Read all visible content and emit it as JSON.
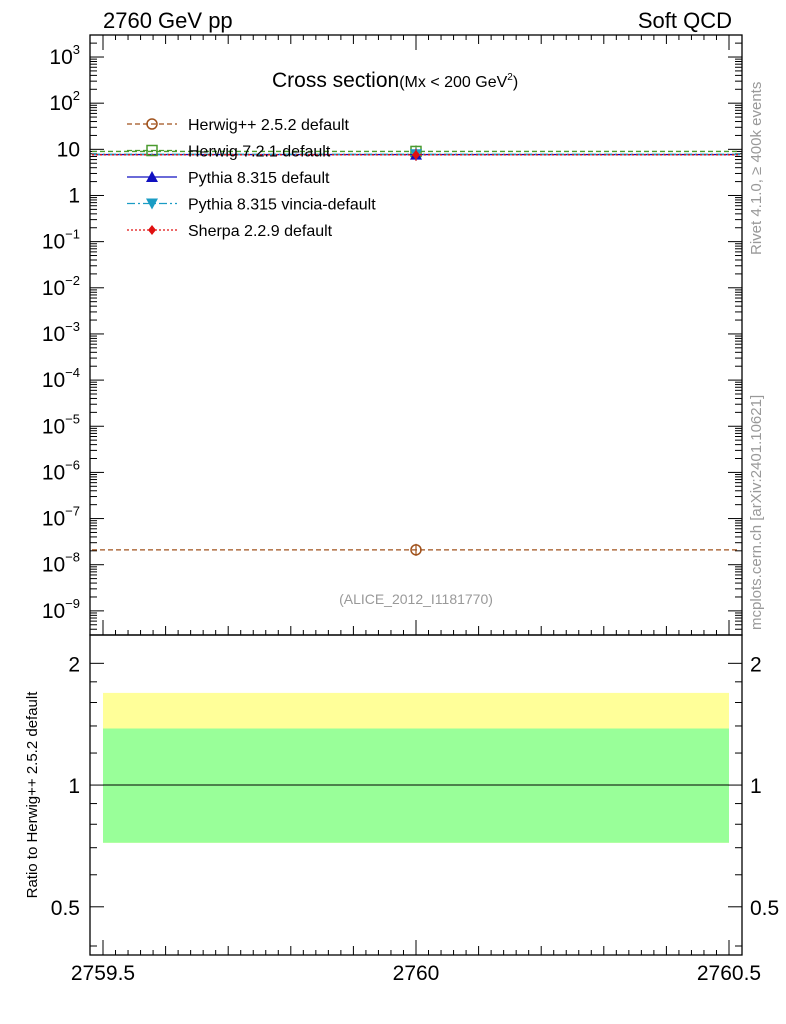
{
  "header": {
    "left": "2760 GeV pp",
    "right": "Soft QCD"
  },
  "side_labels": {
    "rivet": "Rivet 4.1.0, ≥ 400k events",
    "mcplots": "mcplots.cern.ch [arXiv:2401.10621]"
  },
  "chart_data": [
    {
      "type": "line",
      "title": "Cross section",
      "title_cut": "(Mx < 200 GeV",
      "title_cut_sup": "2",
      "title_cut_close": ")",
      "watermark": "(ALICE_2012_I1181770)",
      "scale": "log",
      "ylim": [
        3e-10,
        3000
      ],
      "xlim": [
        2759.5,
        2760.5
      ],
      "y_major_ticks": [
        {
          "v": 1e-09,
          "base": "10",
          "exp": "−9"
        },
        {
          "v": 1e-08,
          "base": "10",
          "exp": "−8"
        },
        {
          "v": 1e-07,
          "base": "10",
          "exp": "−7"
        },
        {
          "v": 1e-06,
          "base": "10",
          "exp": "−6"
        },
        {
          "v": 1e-05,
          "base": "10",
          "exp": "−5"
        },
        {
          "v": 0.0001,
          "base": "10",
          "exp": "−4"
        },
        {
          "v": 0.001,
          "base": "10",
          "exp": "−3"
        },
        {
          "v": 0.01,
          "base": "10",
          "exp": "−2"
        },
        {
          "v": 0.1,
          "base": "10",
          "exp": "−1"
        },
        {
          "v": 1,
          "base": "1",
          "exp": ""
        },
        {
          "v": 10,
          "base": "10",
          "exp": ""
        },
        {
          "v": 100,
          "base": "10",
          "exp": "2"
        },
        {
          "v": 1000,
          "base": "10",
          "exp": "3"
        }
      ],
      "series": [
        {
          "name": "Herwig++ 2.5.2 default",
          "x": [
            2760
          ],
          "y": [
            2.1e-08
          ],
          "color": "#a0521c",
          "dash": "5,3",
          "marker": "circle-open"
        },
        {
          "name": "Herwig 7.2.1 default",
          "x": [
            2760
          ],
          "y": [
            9.0
          ],
          "color": "#4a9a2e",
          "dash": "5,3",
          "marker": "square-open"
        },
        {
          "name": "Pythia 8.315 default",
          "x": [
            2760
          ],
          "y": [
            7.7
          ],
          "color": "#1010c0",
          "dash": "",
          "marker": "triangle-up"
        },
        {
          "name": "Pythia 8.315 vincia-default",
          "x": [
            2760
          ],
          "y": [
            7.8
          ],
          "color": "#1a9cc4",
          "dash": "8,3,2,3",
          "marker": "triangle-down"
        },
        {
          "name": "Sherpa 2.2.9 default",
          "x": [
            2760
          ],
          "y": [
            7.6
          ],
          "color": "#e01010",
          "dash": "2,2",
          "marker": "diamond"
        }
      ]
    },
    {
      "type": "line",
      "ylabel": "Ratio to Herwig++ 2.5.2 default",
      "scale": "log",
      "ylim": [
        0.38,
        2.35
      ],
      "xlim": [
        2759.5,
        2760.5
      ],
      "y_ticks": [
        {
          "v": 0.5,
          "label": "0.5"
        },
        {
          "v": 1,
          "label": "1"
        },
        {
          "v": 2,
          "label": "2"
        }
      ],
      "x_ticks": [
        {
          "v": 2759.5,
          "label": "2759.5"
        },
        {
          "v": 2760,
          "label": "2760"
        },
        {
          "v": 2760.5,
          "label": "2760.5"
        }
      ],
      "bands": [
        {
          "lo": 0.72,
          "hi": 1.69,
          "color": "#ffff99"
        },
        {
          "lo": 0.72,
          "hi": 1.38,
          "color": "#99ff99"
        }
      ],
      "reference": 1
    }
  ]
}
